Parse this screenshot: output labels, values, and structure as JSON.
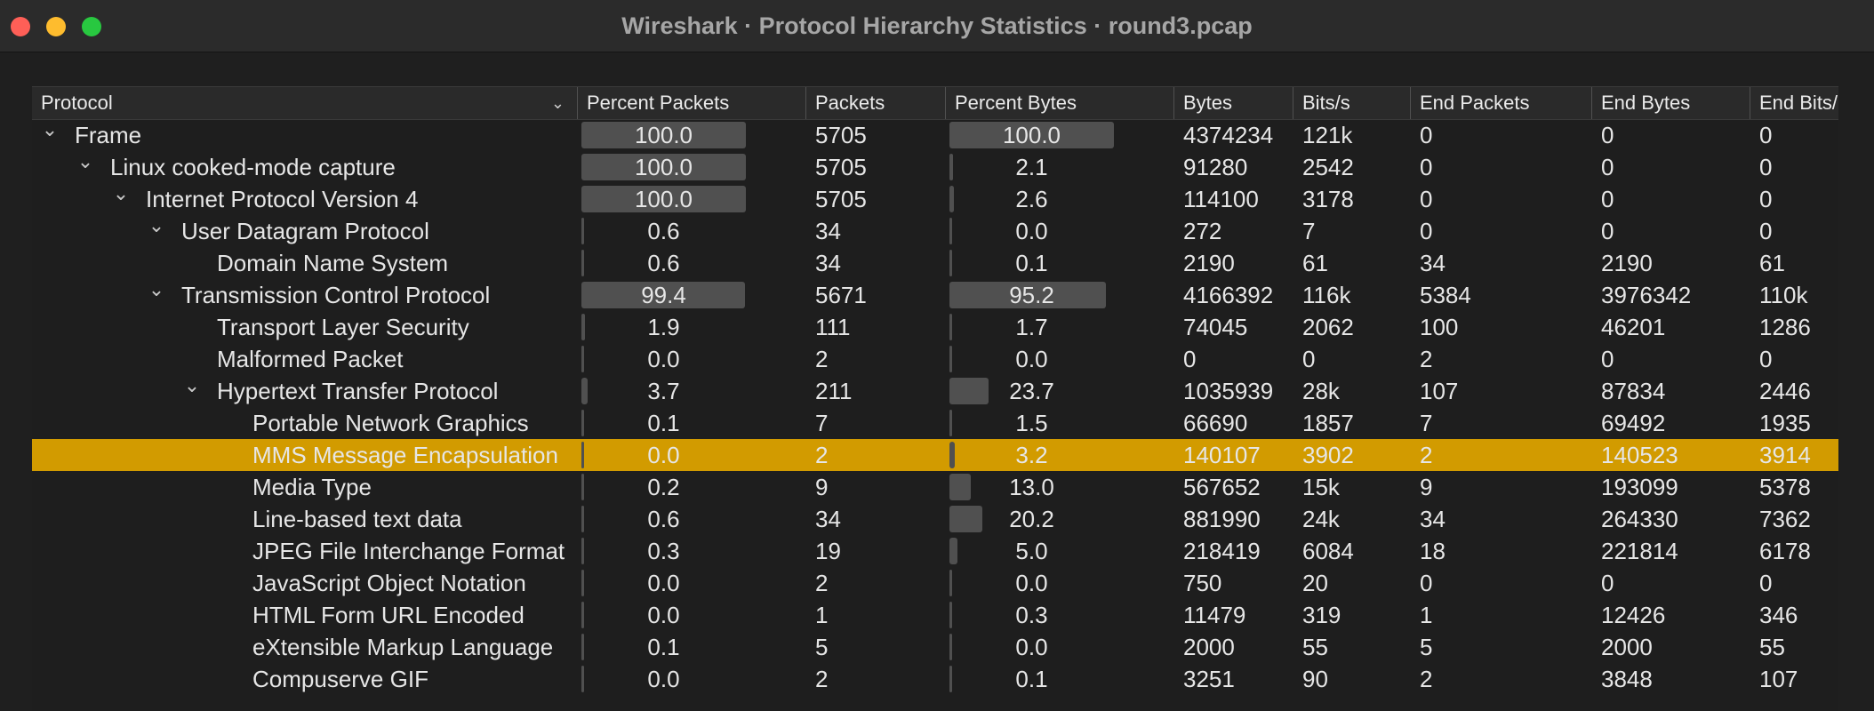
{
  "window": {
    "title": "Wireshark · Protocol Hierarchy Statistics · round3.pcap"
  },
  "columns": [
    "Protocol",
    "Percent Packets",
    "Packets",
    "Percent Bytes",
    "Bytes",
    "Bits/s",
    "End Packets",
    "End Bytes",
    "End Bits/"
  ],
  "rows": [
    {
      "name": "Frame",
      "level": 0,
      "expander": "expanded",
      "pct_packets": "100.0",
      "pct_packets_value": 100.0,
      "packets": "5705",
      "pct_bytes": "100.0",
      "pct_bytes_value": 100.0,
      "bytes": "4374234",
      "bits": "121k",
      "end_packets": "0",
      "end_bytes": "0",
      "end_bits": "0"
    },
    {
      "name": "Linux cooked-mode capture",
      "level": 1,
      "expander": "expanded",
      "pct_packets": "100.0",
      "pct_packets_value": 100.0,
      "packets": "5705",
      "pct_bytes": "2.1",
      "pct_bytes_value": 2.1,
      "bytes": "91280",
      "bits": "2542",
      "end_packets": "0",
      "end_bytes": "0",
      "end_bits": "0"
    },
    {
      "name": "Internet Protocol Version 4",
      "level": 2,
      "expander": "expanded",
      "pct_packets": "100.0",
      "pct_packets_value": 100.0,
      "packets": "5705",
      "pct_bytes": "2.6",
      "pct_bytes_value": 2.6,
      "bytes": "114100",
      "bits": "3178",
      "end_packets": "0",
      "end_bytes": "0",
      "end_bits": "0"
    },
    {
      "name": "User Datagram Protocol",
      "level": 3,
      "expander": "expanded",
      "pct_packets": "0.6",
      "pct_packets_value": 0.6,
      "packets": "34",
      "pct_bytes": "0.0",
      "pct_bytes_value": 0.0,
      "bytes": "272",
      "bits": "7",
      "end_packets": "0",
      "end_bytes": "0",
      "end_bits": "0"
    },
    {
      "name": "Domain Name System",
      "level": 4,
      "expander": "none",
      "pct_packets": "0.6",
      "pct_packets_value": 0.6,
      "packets": "34",
      "pct_bytes": "0.1",
      "pct_bytes_value": 0.1,
      "bytes": "2190",
      "bits": "61",
      "end_packets": "34",
      "end_bytes": "2190",
      "end_bits": "61"
    },
    {
      "name": "Transmission Control Protocol",
      "level": 3,
      "expander": "expanded",
      "pct_packets": "99.4",
      "pct_packets_value": 99.4,
      "packets": "5671",
      "pct_bytes": "95.2",
      "pct_bytes_value": 95.2,
      "bytes": "4166392",
      "bits": "116k",
      "end_packets": "5384",
      "end_bytes": "3976342",
      "end_bits": "110k"
    },
    {
      "name": "Transport Layer Security",
      "level": 4,
      "expander": "none",
      "pct_packets": "1.9",
      "pct_packets_value": 1.9,
      "packets": "111",
      "pct_bytes": "1.7",
      "pct_bytes_value": 1.7,
      "bytes": "74045",
      "bits": "2062",
      "end_packets": "100",
      "end_bytes": "46201",
      "end_bits": "1286"
    },
    {
      "name": "Malformed Packet",
      "level": 4,
      "expander": "none",
      "pct_packets": "0.0",
      "pct_packets_value": 0.0,
      "packets": "2",
      "pct_bytes": "0.0",
      "pct_bytes_value": 0.0,
      "bytes": "0",
      "bits": "0",
      "end_packets": "2",
      "end_bytes": "0",
      "end_bits": "0"
    },
    {
      "name": "Hypertext Transfer Protocol",
      "level": 4,
      "expander": "expanded",
      "pct_packets": "3.7",
      "pct_packets_value": 3.7,
      "packets": "211",
      "pct_bytes": "23.7",
      "pct_bytes_value": 23.7,
      "bytes": "1035939",
      "bits": "28k",
      "end_packets": "107",
      "end_bytes": "87834",
      "end_bits": "2446"
    },
    {
      "name": "Portable Network Graphics",
      "level": 5,
      "expander": "none",
      "pct_packets": "0.1",
      "pct_packets_value": 0.1,
      "packets": "7",
      "pct_bytes": "1.5",
      "pct_bytes_value": 1.5,
      "bytes": "66690",
      "bits": "1857",
      "end_packets": "7",
      "end_bytes": "69492",
      "end_bits": "1935"
    },
    {
      "name": "MMS Message Encapsulation",
      "level": 5,
      "expander": "none",
      "selected": true,
      "pct_packets": "0.0",
      "pct_packets_value": 0.0,
      "packets": "2",
      "pct_bytes": "3.2",
      "pct_bytes_value": 3.2,
      "bytes": "140107",
      "bits": "3902",
      "end_packets": "2",
      "end_bytes": "140523",
      "end_bits": "3914"
    },
    {
      "name": "Media Type",
      "level": 5,
      "expander": "none",
      "pct_packets": "0.2",
      "pct_packets_value": 0.2,
      "packets": "9",
      "pct_bytes": "13.0",
      "pct_bytes_value": 13.0,
      "bytes": "567652",
      "bits": "15k",
      "end_packets": "9",
      "end_bytes": "193099",
      "end_bits": "5378"
    },
    {
      "name": "Line-based text data",
      "level": 5,
      "expander": "none",
      "pct_packets": "0.6",
      "pct_packets_value": 0.6,
      "packets": "34",
      "pct_bytes": "20.2",
      "pct_bytes_value": 20.2,
      "bytes": "881990",
      "bits": "24k",
      "end_packets": "34",
      "end_bytes": "264330",
      "end_bits": "7362"
    },
    {
      "name": "JPEG File Interchange Format",
      "level": 5,
      "expander": "none",
      "pct_packets": "0.3",
      "pct_packets_value": 0.3,
      "packets": "19",
      "pct_bytes": "5.0",
      "pct_bytes_value": 5.0,
      "bytes": "218419",
      "bits": "6084",
      "end_packets": "18",
      "end_bytes": "221814",
      "end_bits": "6178"
    },
    {
      "name": "JavaScript Object Notation",
      "level": 5,
      "expander": "none",
      "pct_packets": "0.0",
      "pct_packets_value": 0.0,
      "packets": "2",
      "pct_bytes": "0.0",
      "pct_bytes_value": 0.0,
      "bytes": "750",
      "bits": "20",
      "end_packets": "0",
      "end_bytes": "0",
      "end_bits": "0"
    },
    {
      "name": "HTML Form URL Encoded",
      "level": 5,
      "expander": "none",
      "pct_packets": "0.0",
      "pct_packets_value": 0.0,
      "packets": "1",
      "pct_bytes": "0.3",
      "pct_bytes_value": 0.3,
      "bytes": "11479",
      "bits": "319",
      "end_packets": "1",
      "end_bytes": "12426",
      "end_bits": "346"
    },
    {
      "name": "eXtensible Markup Language",
      "level": 5,
      "expander": "none",
      "pct_packets": "0.1",
      "pct_packets_value": 0.1,
      "packets": "5",
      "pct_bytes": "0.0",
      "pct_bytes_value": 0.0,
      "bytes": "2000",
      "bits": "55",
      "end_packets": "5",
      "end_bytes": "2000",
      "end_bits": "55"
    },
    {
      "name": "Compuserve GIF",
      "level": 5,
      "expander": "none",
      "pct_packets": "0.0",
      "pct_packets_value": 0.0,
      "packets": "2",
      "pct_bytes": "0.1",
      "pct_bytes_value": 0.1,
      "bytes": "3251",
      "bits": "90",
      "end_packets": "2",
      "end_bytes": "3848",
      "end_bits": "107"
    }
  ],
  "icons": {
    "expander": "chevron-down-icon",
    "sort": "chevron-down-icon"
  }
}
